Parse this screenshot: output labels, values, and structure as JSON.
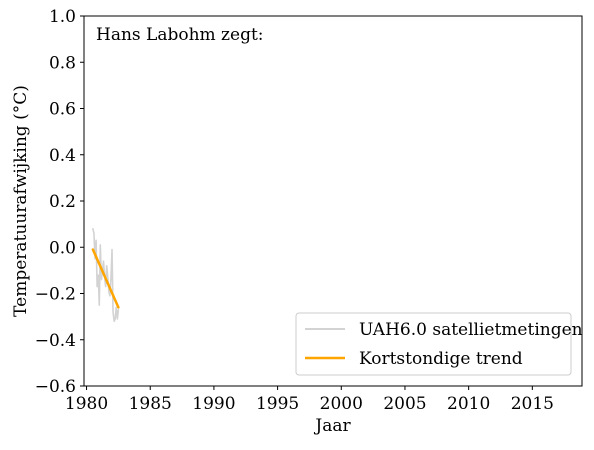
{
  "chart_data": {
    "type": "line",
    "annotation": "Hans Labohm zegt:",
    "xlabel": "Jaar",
    "ylabel": "Temperatuurafwijking (°C)",
    "xlim": [
      1979.8,
      2018.9
    ],
    "ylim": [
      -0.6,
      1.0
    ],
    "x_ticks": [
      1980,
      1985,
      1990,
      1995,
      2000,
      2005,
      2010,
      2015
    ],
    "x_tick_labels": [
      "1980",
      "1985",
      "1990",
      "1995",
      "2000",
      "2005",
      "2010",
      "2015"
    ],
    "y_ticks": [
      -0.6,
      -0.4,
      -0.2,
      0.0,
      0.2,
      0.4,
      0.6,
      0.8,
      1.0
    ],
    "y_tick_labels": [
      "−0.6",
      "−0.4",
      "−0.2",
      "0.0",
      "0.2",
      "0.4",
      "0.6",
      "0.8",
      "1.0"
    ],
    "grid": false,
    "legend_position": "bottom-right",
    "series": [
      {
        "name": "UAH6.0 satellietmetingen",
        "color": "#d3d3d3",
        "x": [
          1980.5,
          1980.58,
          1980.67,
          1980.75,
          1980.83,
          1980.92,
          1981.0,
          1981.08,
          1981.17,
          1981.25,
          1981.33,
          1981.42,
          1981.5,
          1981.58,
          1981.67,
          1981.75,
          1981.83,
          1981.92,
          1982.0,
          1982.08,
          1982.17,
          1982.25,
          1982.33,
          1982.42,
          1982.5
        ],
        "y": [
          0.08,
          0.06,
          -0.05,
          0.03,
          -0.17,
          -0.12,
          -0.25,
          0.01,
          -0.14,
          -0.1,
          -0.06,
          -0.13,
          -0.17,
          -0.08,
          -0.13,
          -0.19,
          -0.21,
          -0.13,
          -0.01,
          -0.28,
          -0.32,
          -0.31,
          -0.26,
          -0.31,
          -0.27
        ]
      },
      {
        "name": "Kortstondige trend",
        "color": "#ffa500",
        "x": [
          1980.5,
          1982.5
        ],
        "y": [
          -0.01,
          -0.26
        ]
      }
    ]
  }
}
